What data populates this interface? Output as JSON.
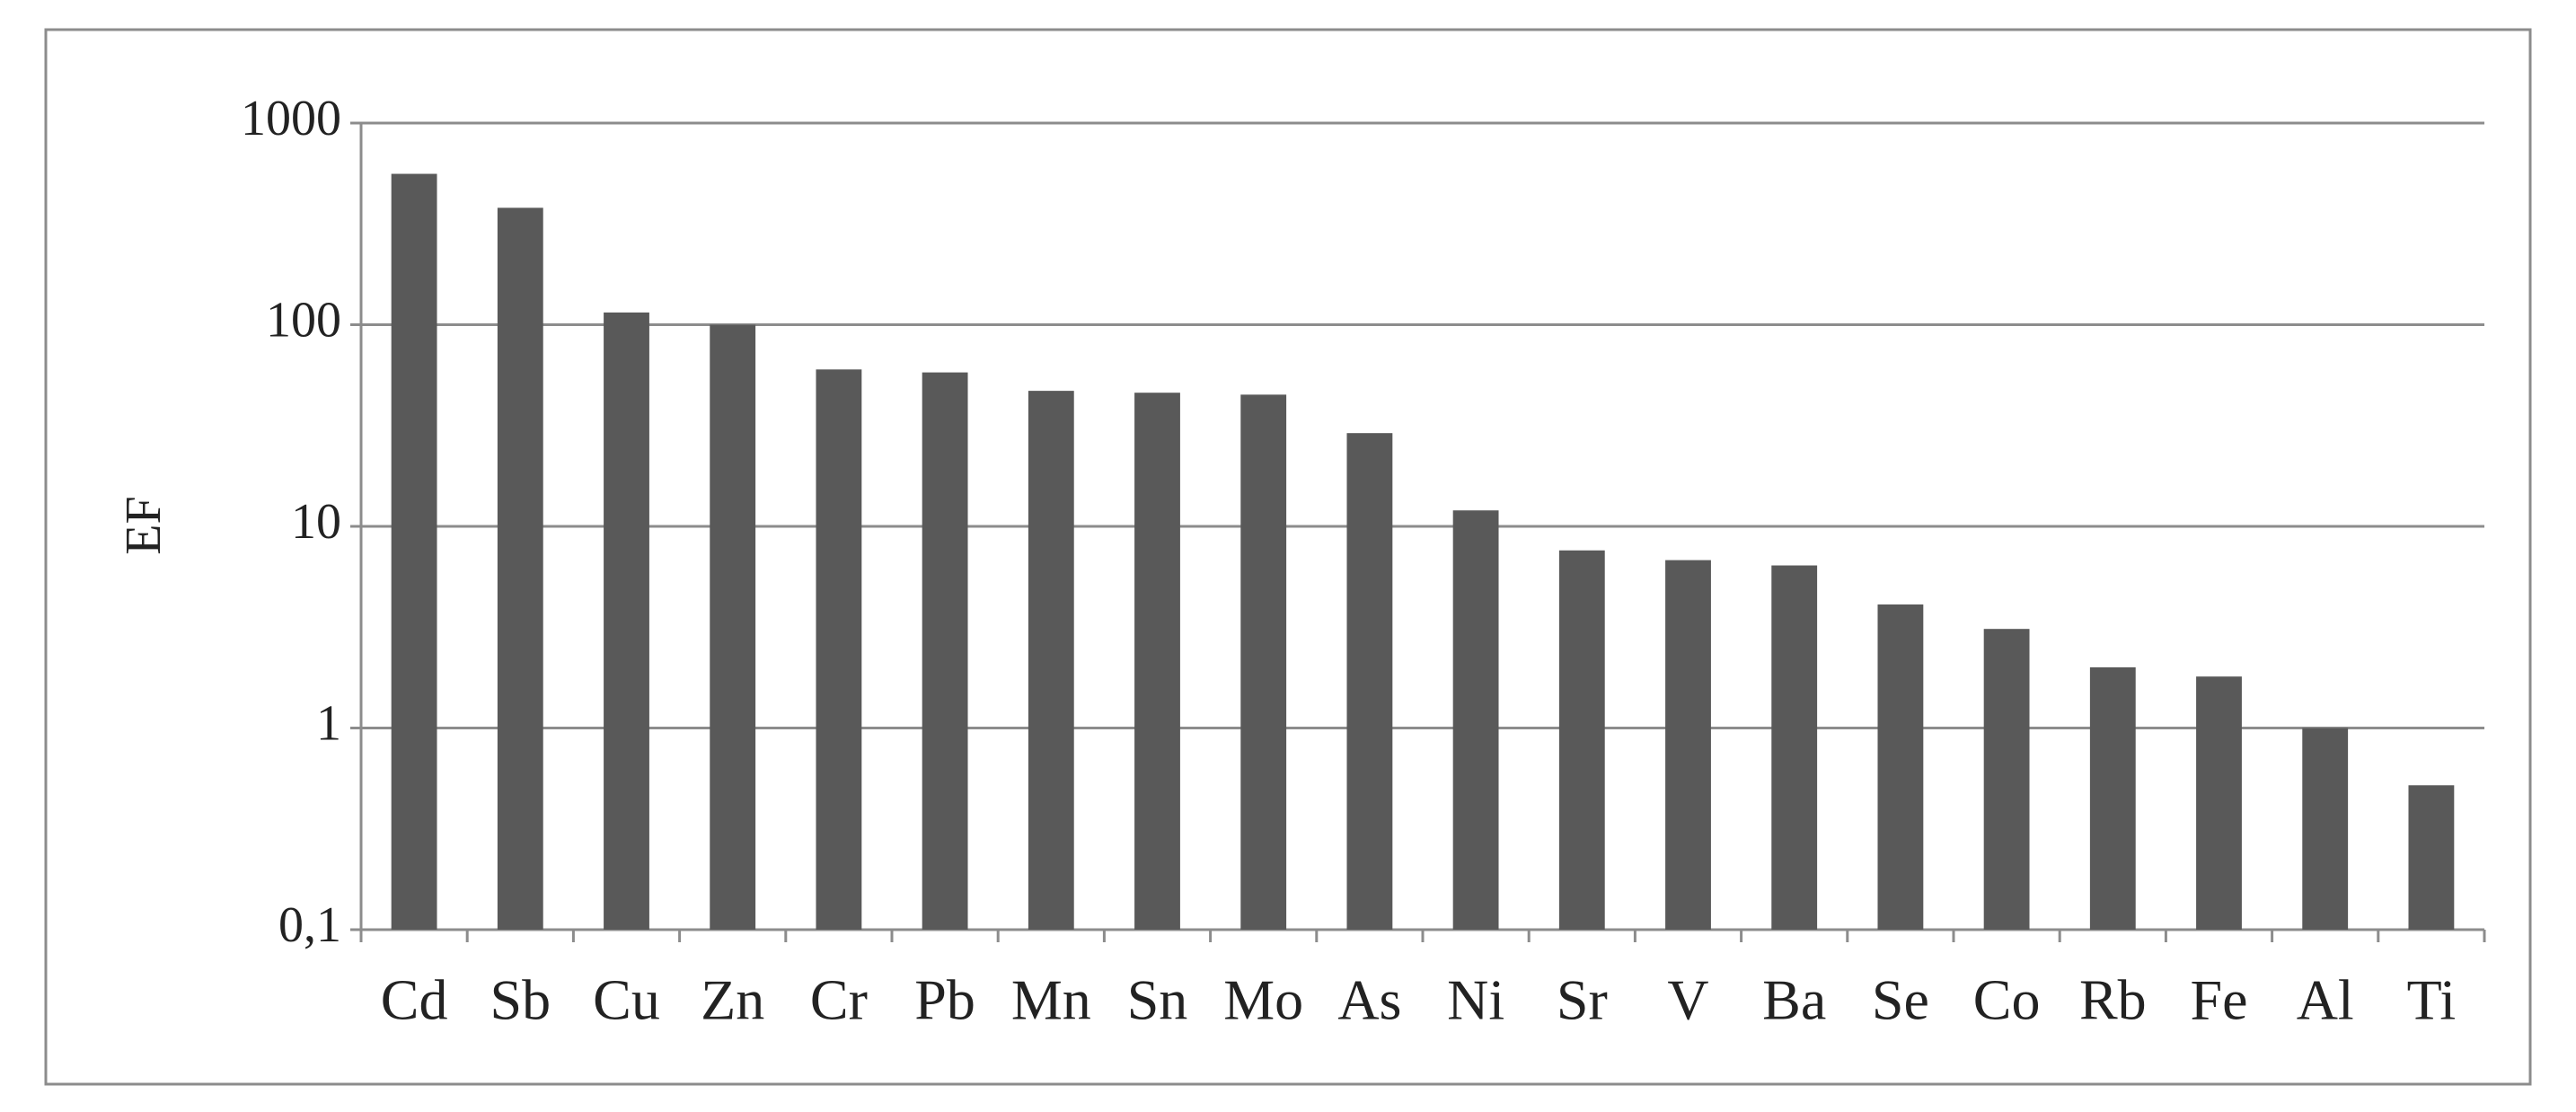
{
  "chart_data": {
    "type": "bar",
    "y_label": "EF",
    "categories": [
      "Cd",
      "Sb",
      "Cu",
      "Zn",
      "Cr",
      "Pb",
      "Mn",
      "Sn",
      "Mo",
      "As",
      "Ni",
      "Sr",
      "V",
      "Ba",
      "Se",
      "Co",
      "Rb",
      "Fe",
      "Al",
      "Ti"
    ],
    "values": [
      560,
      380,
      115,
      100,
      60,
      58,
      47,
      46,
      45,
      29,
      12,
      7.6,
      6.8,
      6.4,
      4.1,
      3.1,
      2,
      1.8,
      1,
      0.52
    ],
    "color": "#595959",
    "ylim": [
      0.1,
      1000
    ],
    "log_scale": true,
    "yticks": [
      {
        "value": 0.1,
        "label": "0,1"
      },
      1,
      10,
      100,
      1000
    ],
    "grid": true
  }
}
